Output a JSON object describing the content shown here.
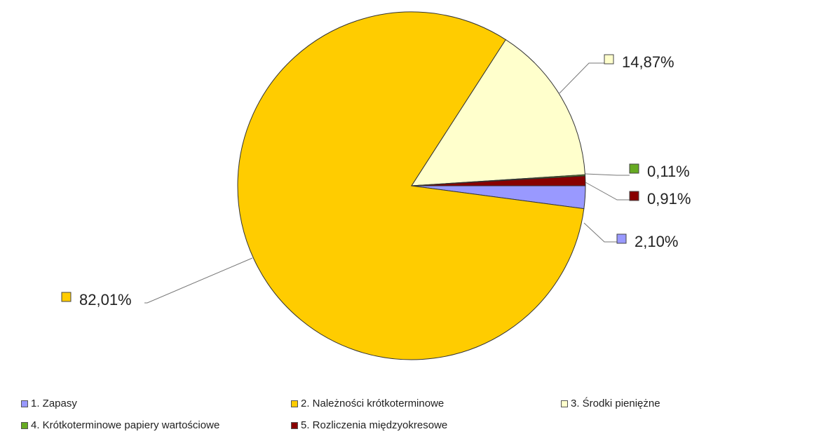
{
  "chart_data": {
    "type": "pie",
    "start_direction": "east",
    "order": "clockwise",
    "slices": [
      {
        "label": "1. Zapasy",
        "value": 2.1,
        "value_label": "2,10%",
        "color": "#9999ff"
      },
      {
        "label": "2. Należności krótkoterminowe",
        "value": 82.01,
        "value_label": "82,01%",
        "color": "#ffcc00"
      },
      {
        "label": "3. Środki pieniężne",
        "value": 14.87,
        "value_label": "14,87%",
        "color": "#ffffcc"
      },
      {
        "label": "4. Krótkoterminowe papiery wartościowe",
        "value": 0.11,
        "value_label": "0,11%",
        "color": "#66aa22"
      },
      {
        "label": "5. Rozliczenia międzyokresowe",
        "value": 0.91,
        "value_label": "0,91%",
        "color": "#880000"
      }
    ],
    "legend_position": "bottom",
    "data_labels": "outside with leader lines"
  }
}
